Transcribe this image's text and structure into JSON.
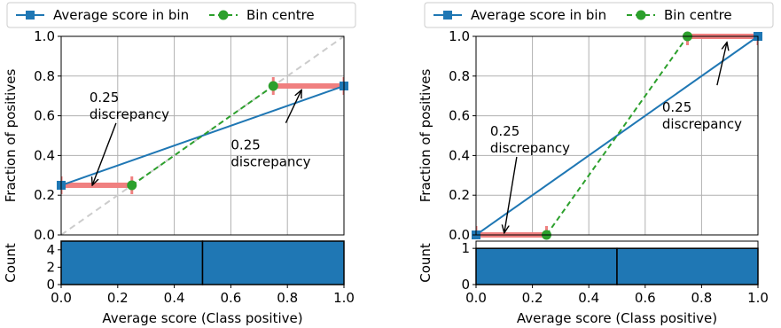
{
  "chart_data": [
    {
      "type": "line",
      "panel": "left",
      "xlabel": "Average score (Class positive)",
      "ylabel": "Fraction of positives",
      "xlim": [
        0,
        1
      ],
      "ylim": [
        0,
        1
      ],
      "grid": true,
      "legend": {
        "placement": "top",
        "entries": [
          "Average score in bin",
          "Bin centre"
        ]
      },
      "xticks": [
        "0.0",
        "0.2",
        "0.4",
        "0.6",
        "0.8",
        "1.0"
      ],
      "yticks": [
        "0.0",
        "0.2",
        "0.4",
        "0.6",
        "0.8",
        "1.0"
      ],
      "diagonal": true,
      "series": [
        {
          "name": "Average score in bin",
          "color": "#1f77b4",
          "style": "solid",
          "marker": "square",
          "x": [
            0.0,
            1.0
          ],
          "y": [
            0.25,
            0.75
          ]
        },
        {
          "name": "Bin centre",
          "color": "#2ca02c",
          "style": "dashed",
          "marker": "circle",
          "x": [
            0.25,
            0.75
          ],
          "y": [
            0.25,
            0.75
          ]
        }
      ],
      "discrepancy_bars": [
        {
          "y": 0.25,
          "x_from": 0.0,
          "x_to": 0.25
        },
        {
          "y": 0.75,
          "x_from": 0.75,
          "x_to": 1.0
        }
      ],
      "annotations": [
        {
          "text": [
            "0.25",
            "discrepancy"
          ],
          "text_x": 0.1,
          "text_y": 0.67,
          "arrow_to": [
            0.11,
            0.25
          ]
        },
        {
          "text": [
            "0.25",
            "discrepancy"
          ],
          "text_x": 0.6,
          "text_y": 0.43,
          "arrow_to": [
            0.85,
            0.73
          ]
        }
      ],
      "count_panel": {
        "ylabel": "Count",
        "yticks": [
          "0",
          "2",
          "4"
        ],
        "ylim": [
          0,
          5
        ],
        "bins": [
          {
            "x0": 0.0,
            "x1": 0.5,
            "count": 5
          },
          {
            "x0": 0.5,
            "x1": 1.0,
            "count": 5
          }
        ],
        "color": "#1f77b4"
      }
    },
    {
      "type": "line",
      "panel": "right",
      "xlabel": "Average score (Class positive)",
      "ylabel": "Fraction of positives",
      "xlim": [
        0,
        1
      ],
      "ylim": [
        0,
        1
      ],
      "grid": true,
      "legend": {
        "placement": "top",
        "entries": [
          "Average score in bin",
          "Bin centre"
        ]
      },
      "xticks": [
        "0.0",
        "0.2",
        "0.4",
        "0.6",
        "0.8",
        "1.0"
      ],
      "yticks": [
        "0.0",
        "0.2",
        "0.4",
        "0.6",
        "0.8",
        "1.0"
      ],
      "diagonal": false,
      "series": [
        {
          "name": "Average score in bin",
          "color": "#1f77b4",
          "style": "solid",
          "marker": "square",
          "x": [
            0.0,
            1.0
          ],
          "y": [
            0.0,
            1.0
          ]
        },
        {
          "name": "Bin centre",
          "color": "#2ca02c",
          "style": "dashed",
          "marker": "circle",
          "x": [
            0.25,
            0.75
          ],
          "y": [
            0.0,
            1.0
          ]
        }
      ],
      "discrepancy_bars": [
        {
          "y": 0.0,
          "x_from": 0.0,
          "x_to": 0.25
        },
        {
          "y": 1.0,
          "x_from": 0.75,
          "x_to": 1.0
        }
      ],
      "annotations": [
        {
          "text": [
            "0.25",
            "discrepancy"
          ],
          "text_x": 0.05,
          "text_y": 0.5,
          "arrow_to": [
            0.1,
            0.01
          ]
        },
        {
          "text": [
            "0.25",
            "discrepancy"
          ],
          "text_x": 0.66,
          "text_y": 0.62,
          "arrow_to": [
            0.89,
            0.97
          ]
        }
      ],
      "count_panel": {
        "ylabel": "Count",
        "yticks": [
          "0",
          "1"
        ],
        "ylim": [
          0,
          1.2
        ],
        "bins": [
          {
            "x0": 0.0,
            "x1": 0.5,
            "count": 1
          },
          {
            "x0": 0.5,
            "x1": 1.0,
            "count": 1
          }
        ],
        "color": "#1f77b4"
      }
    }
  ]
}
